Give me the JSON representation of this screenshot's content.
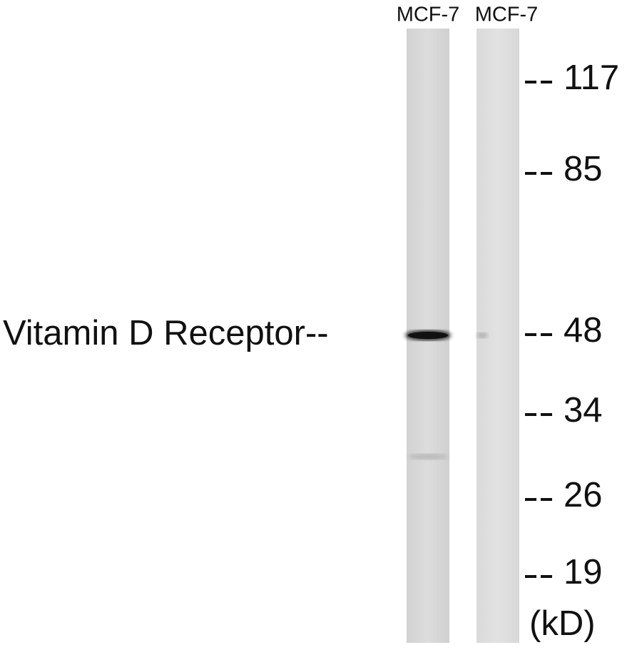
{
  "lanes": [
    {
      "label": "MCF-7"
    },
    {
      "label": "MCF-7"
    }
  ],
  "protein_label": "Vitamin D Receptor--",
  "markers": [
    "117",
    "85",
    "48",
    "34",
    "26",
    "19"
  ],
  "unit": "(kD)"
}
